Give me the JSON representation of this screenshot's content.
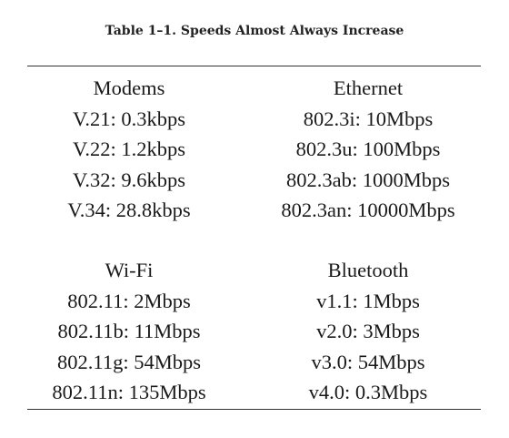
{
  "caption": "Table 1–1. Speeds Almost Always Increase",
  "groups": [
    {
      "heading": "Modems",
      "items": [
        "V.21: 0.3kbps",
        "V.22: 1.2kbps",
        "V.32: 9.6kbps",
        "V.34: 28.8kbps"
      ]
    },
    {
      "heading": "Ethernet",
      "items": [
        "802.3i: 10Mbps",
        "802.3u: 100Mbps",
        "802.3ab: 1000Mbps",
        "802.3an: 10000Mbps"
      ]
    },
    {
      "heading": "Wi-Fi",
      "items": [
        "802.11: 2Mbps",
        "802.11b: 11Mbps",
        "802.11g: 54Mbps",
        "802.11n: 135Mbps"
      ]
    },
    {
      "heading": "Bluetooth",
      "items": [
        "v1.1: 1Mbps",
        "v2.0: 3Mbps",
        "v3.0: 54Mbps",
        "v4.0: 0.3Mbps"
      ]
    }
  ]
}
